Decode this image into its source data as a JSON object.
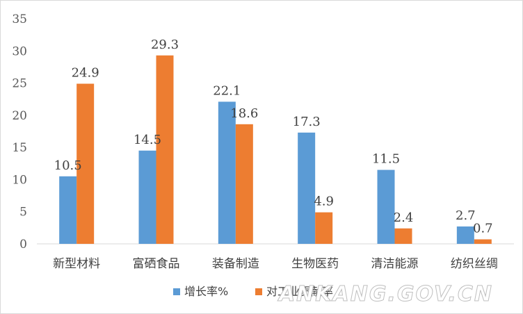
{
  "chart_data": {
    "type": "bar",
    "title": "",
    "xlabel": "",
    "ylabel": "",
    "categories": [
      "新型材料",
      "富硒食品",
      "装备制造",
      "生物医药",
      "清洁能源",
      "纺织丝绸"
    ],
    "series": [
      {
        "name": "增长率%",
        "values": [
          10.5,
          14.5,
          22.1,
          17.3,
          11.5,
          2.7
        ],
        "color": "#5b9bd5"
      },
      {
        "name": "对工业贡献率",
        "values": [
          24.9,
          29.3,
          18.6,
          4.9,
          2.4,
          0.7
        ],
        "color": "#ed7d31"
      }
    ],
    "ylim": [
      0,
      35
    ],
    "yticks": [
      0,
      5,
      10,
      15,
      20,
      25,
      30,
      35
    ],
    "grid": false,
    "legend": "bottom",
    "data_labels": true
  },
  "watermark": {
    "text": "ANKANG.GOV.CN"
  }
}
